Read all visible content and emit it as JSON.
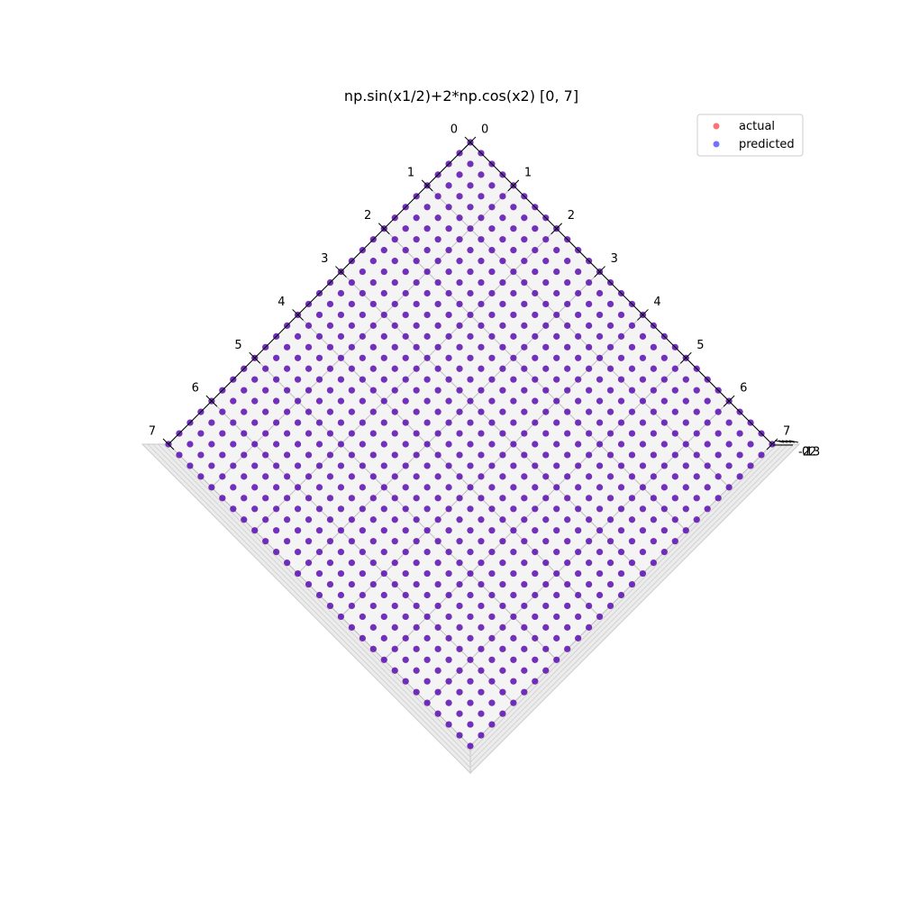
{
  "chart_data": {
    "type": "scatter",
    "title": "np.sin(x1/2)+2*np.cos(x2) [0, 7]",
    "xlabel": "",
    "ylabel": "",
    "zlabel": "",
    "x1_range": [
      0,
      7
    ],
    "x2_range": [
      0,
      7
    ],
    "z_range": [
      -3,
      3
    ],
    "x1_ticks": [
      "0",
      "1",
      "2",
      "3",
      "4",
      "5",
      "6",
      "7"
    ],
    "x2_ticks": [
      "0",
      "1",
      "2",
      "3",
      "4",
      "5",
      "6",
      "7"
    ],
    "z_ticks": [
      "-2",
      "0",
      "1",
      "2",
      "3"
    ],
    "grid": true,
    "legend_position": "top-right",
    "view": "top-down rotated 45 degrees",
    "grid_points": {
      "x1": {
        "start": 0,
        "stop": 7,
        "count": 29
      },
      "x2": {
        "start": 0,
        "stop": 7,
        "count": 29
      }
    },
    "series": [
      {
        "name": "actual",
        "color": "#ff0000",
        "opacity": 0.55
      },
      {
        "name": "predicted",
        "color": "#0000ff",
        "opacity": 0.55
      }
    ]
  }
}
